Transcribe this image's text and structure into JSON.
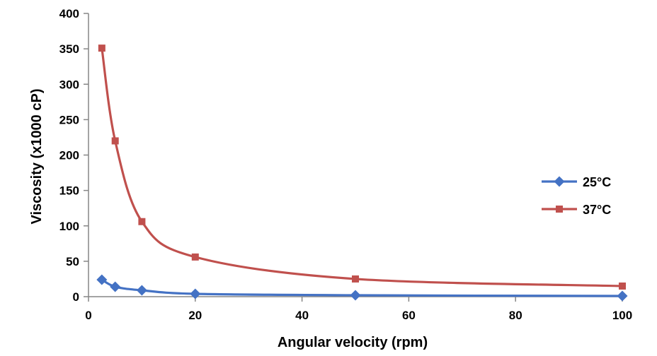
{
  "chart_data": {
    "type": "line",
    "xlabel": "Angular velocity (rpm)",
    "ylabel": "Viscosity (x1000 cP)",
    "xlim": [
      0,
      100
    ],
    "ylim": [
      0,
      400
    ],
    "xticks": [
      "0",
      "20",
      "40",
      "60",
      "80",
      "100"
    ],
    "yticks": [
      "0",
      "50",
      "100",
      "150",
      "200",
      "250",
      "300",
      "350",
      "400"
    ],
    "grid": false,
    "legend_position": "right",
    "x": [
      2.5,
      5,
      10,
      20,
      50,
      100
    ],
    "series": [
      {
        "name": "25°C",
        "color": "#4472C4",
        "marker": "diamond",
        "values": [
          24,
          14,
          9,
          4,
          2,
          1
        ]
      },
      {
        "name": "37°C",
        "color": "#C0504D",
        "marker": "square",
        "values": [
          351,
          220,
          106,
          56,
          25,
          15
        ]
      }
    ]
  }
}
